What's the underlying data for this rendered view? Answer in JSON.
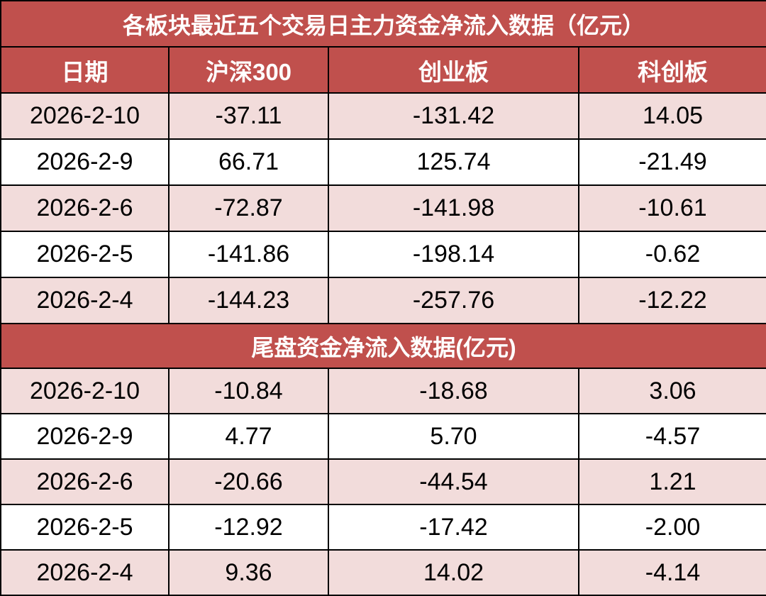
{
  "chart_data": {
    "type": "table",
    "title": "各板块最近五个交易日主力资金净流入数据（亿元）",
    "columns": [
      "日期",
      "沪深300",
      "创业板",
      "科创板"
    ],
    "colors": {
      "header": "#c0504d",
      "stripe": "#f2dcdb"
    },
    "main_rows": [
      [
        "2026-2-10",
        "-37.11",
        "-131.42",
        "14.05"
      ],
      [
        "2026-2-9",
        "66.71",
        "125.74",
        "-21.49"
      ],
      [
        "2026-2-6",
        "-72.87",
        "-141.98",
        "-10.61"
      ],
      [
        "2026-2-5",
        "-141.86",
        "-198.14",
        "-0.62"
      ],
      [
        "2026-2-4",
        "-144.23",
        "-257.76",
        "-12.22"
      ]
    ],
    "subtitle": "尾盘资金净流入数据(亿元)",
    "tail_rows": [
      [
        "2026-2-10",
        "-10.84",
        "-18.68",
        "3.06"
      ],
      [
        "2026-2-9",
        "4.77",
        "5.70",
        "-4.57"
      ],
      [
        "2026-2-6",
        "-20.66",
        "-44.54",
        "1.21"
      ],
      [
        "2026-2-5",
        "-12.92",
        "-17.42",
        "-2.00"
      ],
      [
        "2026-2-4",
        "9.36",
        "14.02",
        "-4.14"
      ]
    ]
  }
}
